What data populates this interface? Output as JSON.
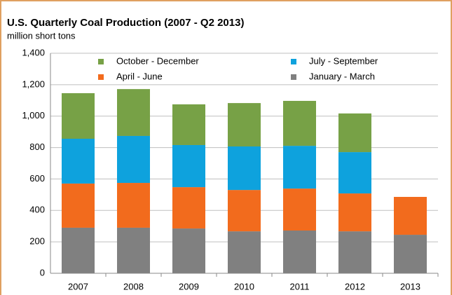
{
  "chart_data": {
    "type": "stacked_bar",
    "title": "U.S. Quarterly Coal Production (2007 - Q2 2013)",
    "subtitle": "million short tons",
    "categories": [
      "2007",
      "2008",
      "2009",
      "2010",
      "2011",
      "2012",
      "2013"
    ],
    "series": [
      {
        "name": "January - March",
        "color": "#808080",
        "values": [
          290,
          290,
          285,
          267,
          272,
          267,
          245
        ]
      },
      {
        "name": "April - June",
        "color": "#f26b1d",
        "values": [
          281,
          285,
          263,
          263,
          267,
          241,
          241
        ]
      },
      {
        "name": "July - September",
        "color": "#0ea2dd",
        "values": [
          285,
          299,
          268,
          277,
          272,
          263,
          null
        ]
      },
      {
        "name": "October - December",
        "color": "#77a146",
        "values": [
          290,
          298,
          259,
          276,
          286,
          246,
          null
        ]
      }
    ],
    "ylim": [
      0,
      1400
    ],
    "yticks": [
      0,
      200,
      400,
      600,
      800,
      {
        "value": 1000,
        "label": "1,000"
      },
      {
        "value": 1200,
        "label": "1,200"
      },
      {
        "value": 1400,
        "label": "1,400"
      }
    ],
    "grid": true
  }
}
